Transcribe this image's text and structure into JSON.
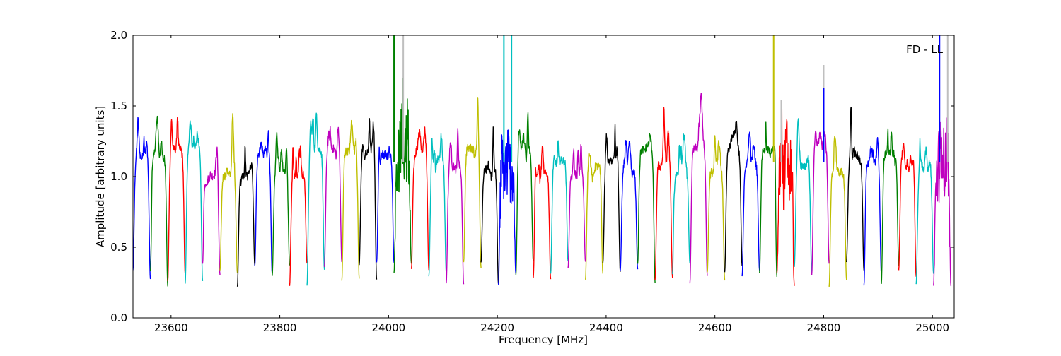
{
  "chart_data": {
    "type": "line",
    "title": "",
    "xlabel": "Frequency [MHz]",
    "ylabel": "Amplitude [arbitrary units]",
    "annotation": "FD - LL",
    "annotation_position": "top-right",
    "xlim": [
      23530,
      25040
    ],
    "ylim": [
      0.0,
      2.0
    ],
    "x_ticks": [
      23600,
      23800,
      24000,
      24200,
      24400,
      24600,
      24800,
      25000
    ],
    "y_ticks": [
      0.0,
      0.5,
      1.0,
      1.5,
      2.0
    ],
    "x_tick_labels": [
      "23600",
      "23800",
      "24000",
      "24200",
      "24400",
      "24600",
      "24800",
      "25000"
    ],
    "y_tick_labels": [
      "0.0",
      "0.5",
      "1.0",
      "1.5",
      "2.0"
    ],
    "grid": false,
    "legend": "none",
    "color_cycle": [
      "#0000ff",
      "#008000",
      "#ff0000",
      "#00bfbf",
      "#bf00bf",
      "#bfbf00",
      "#000000"
    ],
    "band_width_mhz": 32,
    "band_starts": [
      23530,
      23562,
      23594,
      23626,
      23658,
      23690,
      23722,
      23754,
      23786,
      23818,
      23850,
      23882,
      23914,
      23946,
      23978,
      24010,
      24042,
      24074,
      24106,
      24138,
      24170,
      24202,
      24234,
      24266,
      24298,
      24330,
      24362,
      24394,
      24426,
      24458,
      24490,
      24522,
      24554,
      24586,
      24618,
      24650,
      24682,
      24714,
      24746,
      24778,
      24810,
      24842,
      24874,
      24906,
      24938,
      24970,
      25002
    ],
    "typical_amplitude": [
      1.0,
      1.35
    ],
    "edge_dip_amplitude": [
      0.22,
      0.4
    ],
    "spikes": [
      {
        "x": 24010,
        "y": 2.0,
        "color": "#008000"
      },
      {
        "x": 24026,
        "y": 1.7,
        "color": "#008000"
      },
      {
        "x": 24027,
        "y": 2.0,
        "color": "#bfbfbf"
      },
      {
        "x": 24212,
        "y": 2.0,
        "color": "#00bfbf"
      },
      {
        "x": 24226,
        "y": 2.0,
        "color": "#00bfbf"
      },
      {
        "x": 24708,
        "y": 2.0,
        "color": "#bfbf00"
      },
      {
        "x": 24722,
        "y": 1.54,
        "color": "#bfbfbf"
      },
      {
        "x": 24800,
        "y": 1.79,
        "color": "#bfbfbf"
      },
      {
        "x": 24800,
        "y": 1.63,
        "color": "#0000ff"
      },
      {
        "x": 25013,
        "y": 2.0,
        "color": "#0000ff"
      },
      {
        "x": 25028,
        "y": 2.0,
        "color": "#bfbfbf"
      }
    ],
    "noisy_band_starts": [
      24010,
      24202,
      24714,
      25002
    ]
  }
}
